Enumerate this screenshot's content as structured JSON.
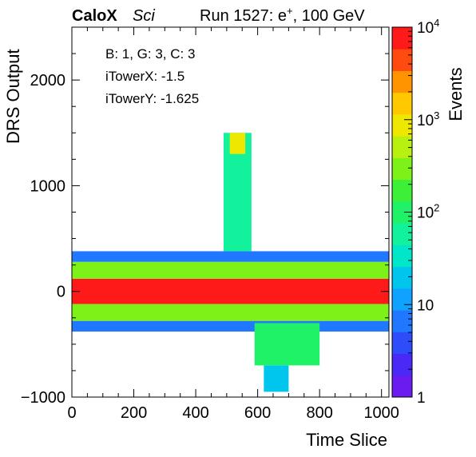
{
  "header": {
    "experiment": "CaloX",
    "variant": "Sci",
    "run_prefix": "Run 1527: e",
    "run_sup": "+",
    "run_suffix": ", 100 GeV"
  },
  "stats_box": {
    "line1": "B: 1, G: 3, C: 3",
    "line2": "iTowerX: -1.5",
    "line3": "iTowerY: -1.625"
  },
  "chart_data": {
    "type": "heatmap",
    "title": "",
    "xlabel": "Time Slice",
    "ylabel": "DRS Output",
    "zlabel": "Events",
    "xlim": [
      0,
      1024
    ],
    "ylim": [
      -1000,
      2500
    ],
    "zlim": [
      1,
      10000
    ],
    "z_log_scale": true,
    "x_ticks": [
      0,
      200,
      400,
      600,
      800,
      1000
    ],
    "x_tick_labels": [
      "0",
      "200",
      "400",
      "600",
      "800",
      "1000"
    ],
    "y_ticks": [
      -1000,
      0,
      1000,
      2000
    ],
    "y_tick_labels": [
      "−1000",
      "0",
      "1000",
      "2000"
    ],
    "z_ticks": [
      {
        "value": 1,
        "base": "1",
        "exp": ""
      },
      {
        "value": 10,
        "base": "10",
        "exp": ""
      },
      {
        "value": 100,
        "base": "10",
        "exp": "2"
      },
      {
        "value": 1000,
        "base": "10",
        "exp": "3"
      },
      {
        "value": 10000,
        "base": "10",
        "exp": "4"
      }
    ],
    "regions": [
      {
        "x": [
          0,
          1024
        ],
        "y": [
          -120,
          120
        ],
        "z": 10000
      },
      {
        "x": [
          0,
          1024
        ],
        "y": [
          120,
          280
        ],
        "z": 300
      },
      {
        "x": [
          0,
          1024
        ],
        "y": [
          -280,
          -120
        ],
        "z": 300
      },
      {
        "x": [
          0,
          1024
        ],
        "y": [
          280,
          380
        ],
        "z": 8
      },
      {
        "x": [
          0,
          1024
        ],
        "y": [
          -380,
          -280
        ],
        "z": 8
      },
      {
        "x": [
          490,
          580
        ],
        "y": [
          380,
          1500
        ],
        "z": 60
      },
      {
        "x": [
          510,
          560
        ],
        "y": [
          1300,
          1500
        ],
        "z": 800
      },
      {
        "x": [
          590,
          800
        ],
        "y": [
          -700,
          -300
        ],
        "z": 100
      },
      {
        "x": [
          620,
          700
        ],
        "y": [
          -950,
          -700
        ],
        "z": 20
      }
    ],
    "grid": false,
    "legend": "none"
  }
}
